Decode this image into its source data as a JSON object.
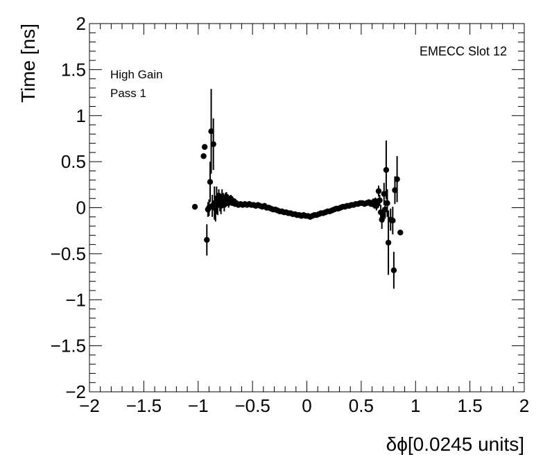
{
  "chart_data": {
    "type": "scatter",
    "title": "",
    "xlabel": "δϕ[0.0245 units]",
    "ylabel": "Time [ns]",
    "xlim": [
      -2,
      2
    ],
    "ylim": [
      -2,
      2
    ],
    "x_ticks": [
      -2,
      -1.5,
      -1,
      -0.5,
      0,
      0.5,
      1,
      1.5,
      2
    ],
    "y_ticks": [
      -2,
      -1.5,
      -1,
      -0.5,
      0,
      0.5,
      1,
      1.5,
      2
    ],
    "x_tick_labels": [
      "−2",
      "−1.5",
      "−1",
      "−0.5",
      "0",
      "0.5",
      "1",
      "1.5",
      "2"
    ],
    "y_tick_labels": [
      "−2",
      "−1.5",
      "−1",
      "−0.5",
      "0",
      "0.5",
      "1",
      "1.5",
      "2"
    ],
    "grid": false,
    "error_bars": true,
    "marker_color": "#000000",
    "annotations": {
      "top_left_line1": "High Gain",
      "top_left_line2": "Pass 1",
      "top_right": "EMECC Slot 12"
    },
    "series": [
      {
        "points": [
          {
            "x": -1.03,
            "y": 0.01,
            "err": 0.0
          },
          {
            "x": -0.95,
            "y": 0.56,
            "err": 0.0
          },
          {
            "x": -0.94,
            "y": 0.66,
            "err": 0.0
          },
          {
            "x": -0.92,
            "y": -0.35,
            "err": 0.17
          },
          {
            "x": -0.91,
            "y": -0.02,
            "err": 0.08
          },
          {
            "x": -0.9,
            "y": 0.0,
            "err": 0.09
          },
          {
            "x": -0.89,
            "y": 0.28,
            "err": 0.22
          },
          {
            "x": -0.88,
            "y": 0.83,
            "err": 0.46
          },
          {
            "x": -0.87,
            "y": 0.02,
            "err": 0.12
          },
          {
            "x": -0.86,
            "y": 0.69,
            "err": 0.28
          },
          {
            "x": -0.85,
            "y": 0.05,
            "err": 0.18
          },
          {
            "x": -0.84,
            "y": -0.01,
            "err": 0.14
          },
          {
            "x": -0.83,
            "y": 0.08,
            "err": 0.15
          },
          {
            "x": -0.82,
            "y": 0.04,
            "err": 0.12
          },
          {
            "x": -0.81,
            "y": 0.1,
            "err": 0.1
          },
          {
            "x": -0.8,
            "y": 0.06,
            "err": 0.1
          },
          {
            "x": -0.79,
            "y": 0.02,
            "err": 0.09
          },
          {
            "x": -0.78,
            "y": 0.12,
            "err": 0.08
          },
          {
            "x": -0.77,
            "y": 0.09,
            "err": 0.07
          },
          {
            "x": -0.76,
            "y": 0.03,
            "err": 0.07
          },
          {
            "x": -0.75,
            "y": 0.1,
            "err": 0.06
          },
          {
            "x": -0.74,
            "y": 0.12,
            "err": 0.05
          },
          {
            "x": -0.73,
            "y": 0.07,
            "err": 0.05
          },
          {
            "x": -0.72,
            "y": 0.05,
            "err": 0.05
          },
          {
            "x": -0.71,
            "y": 0.08,
            "err": 0.04
          },
          {
            "x": -0.7,
            "y": 0.1,
            "err": 0.04
          },
          {
            "x": -0.69,
            "y": 0.06,
            "err": 0.04
          },
          {
            "x": -0.68,
            "y": 0.05,
            "err": 0.03
          },
          {
            "x": -0.67,
            "y": 0.07,
            "err": 0.03
          },
          {
            "x": -0.66,
            "y": 0.04,
            "err": 0.03
          },
          {
            "x": -0.65,
            "y": 0.05,
            "err": 0.02
          },
          {
            "x": -0.63,
            "y": 0.03,
            "err": 0.02
          },
          {
            "x": -0.61,
            "y": 0.04,
            "err": 0.02
          },
          {
            "x": -0.59,
            "y": 0.03,
            "err": 0.02
          },
          {
            "x": -0.57,
            "y": 0.04,
            "err": 0.02
          },
          {
            "x": -0.55,
            "y": 0.03,
            "err": 0.02
          },
          {
            "x": -0.53,
            "y": 0.04,
            "err": 0.02
          },
          {
            "x": -0.51,
            "y": 0.03,
            "err": 0.02
          },
          {
            "x": -0.49,
            "y": 0.03,
            "err": 0.02
          },
          {
            "x": -0.47,
            "y": 0.02,
            "err": 0.02
          },
          {
            "x": -0.45,
            "y": 0.03,
            "err": 0.02
          },
          {
            "x": -0.43,
            "y": 0.02,
            "err": 0.02
          },
          {
            "x": -0.41,
            "y": 0.01,
            "err": 0.02
          },
          {
            "x": -0.39,
            "y": 0.02,
            "err": 0.02
          },
          {
            "x": -0.37,
            "y": 0.0,
            "err": 0.02
          },
          {
            "x": -0.35,
            "y": 0.0,
            "err": 0.02
          },
          {
            "x": -0.33,
            "y": -0.01,
            "err": 0.02
          },
          {
            "x": -0.31,
            "y": -0.02,
            "err": 0.02
          },
          {
            "x": -0.29,
            "y": -0.02,
            "err": 0.02
          },
          {
            "x": -0.27,
            "y": -0.03,
            "err": 0.02
          },
          {
            "x": -0.25,
            "y": -0.04,
            "err": 0.02
          },
          {
            "x": -0.23,
            "y": -0.04,
            "err": 0.02
          },
          {
            "x": -0.21,
            "y": -0.05,
            "err": 0.02
          },
          {
            "x": -0.19,
            "y": -0.05,
            "err": 0.02
          },
          {
            "x": -0.17,
            "y": -0.06,
            "err": 0.02
          },
          {
            "x": -0.15,
            "y": -0.06,
            "err": 0.02
          },
          {
            "x": -0.13,
            "y": -0.07,
            "err": 0.02
          },
          {
            "x": -0.11,
            "y": -0.07,
            "err": 0.02
          },
          {
            "x": -0.09,
            "y": -0.08,
            "err": 0.02
          },
          {
            "x": -0.07,
            "y": -0.08,
            "err": 0.02
          },
          {
            "x": -0.05,
            "y": -0.09,
            "err": 0.02
          },
          {
            "x": -0.03,
            "y": -0.08,
            "err": 0.02
          },
          {
            "x": -0.01,
            "y": -0.09,
            "err": 0.02
          },
          {
            "x": 0.01,
            "y": -0.09,
            "err": 0.02
          },
          {
            "x": 0.03,
            "y": -0.1,
            "err": 0.02
          },
          {
            "x": 0.05,
            "y": -0.09,
            "err": 0.02
          },
          {
            "x": 0.07,
            "y": -0.08,
            "err": 0.02
          },
          {
            "x": 0.09,
            "y": -0.08,
            "err": 0.02
          },
          {
            "x": 0.11,
            "y": -0.07,
            "err": 0.02
          },
          {
            "x": 0.13,
            "y": -0.06,
            "err": 0.02
          },
          {
            "x": 0.15,
            "y": -0.06,
            "err": 0.02
          },
          {
            "x": 0.17,
            "y": -0.05,
            "err": 0.02
          },
          {
            "x": 0.19,
            "y": -0.04,
            "err": 0.02
          },
          {
            "x": 0.21,
            "y": -0.04,
            "err": 0.02
          },
          {
            "x": 0.23,
            "y": -0.03,
            "err": 0.02
          },
          {
            "x": 0.25,
            "y": -0.02,
            "err": 0.02
          },
          {
            "x": 0.27,
            "y": -0.01,
            "err": 0.02
          },
          {
            "x": 0.29,
            "y": -0.01,
            "err": 0.02
          },
          {
            "x": 0.31,
            "y": 0.0,
            "err": 0.02
          },
          {
            "x": 0.33,
            "y": 0.01,
            "err": 0.02
          },
          {
            "x": 0.35,
            "y": 0.01,
            "err": 0.02
          },
          {
            "x": 0.37,
            "y": 0.02,
            "err": 0.02
          },
          {
            "x": 0.39,
            "y": 0.02,
            "err": 0.02
          },
          {
            "x": 0.41,
            "y": 0.03,
            "err": 0.02
          },
          {
            "x": 0.43,
            "y": 0.03,
            "err": 0.02
          },
          {
            "x": 0.45,
            "y": 0.04,
            "err": 0.02
          },
          {
            "x": 0.47,
            "y": 0.04,
            "err": 0.02
          },
          {
            "x": 0.49,
            "y": 0.05,
            "err": 0.02
          },
          {
            "x": 0.51,
            "y": 0.05,
            "err": 0.02
          },
          {
            "x": 0.53,
            "y": 0.04,
            "err": 0.02
          },
          {
            "x": 0.55,
            "y": 0.05,
            "err": 0.03
          },
          {
            "x": 0.57,
            "y": 0.06,
            "err": 0.03
          },
          {
            "x": 0.59,
            "y": 0.04,
            "err": 0.03
          },
          {
            "x": 0.61,
            "y": 0.06,
            "err": 0.04
          },
          {
            "x": 0.62,
            "y": 0.03,
            "err": 0.04
          },
          {
            "x": 0.63,
            "y": 0.07,
            "err": 0.04
          },
          {
            "x": 0.64,
            "y": 0.02,
            "err": 0.05
          },
          {
            "x": 0.65,
            "y": 0.05,
            "err": 0.05
          },
          {
            "x": 0.66,
            "y": 0.18,
            "err": 0.06
          },
          {
            "x": 0.67,
            "y": 0.08,
            "err": 0.06
          },
          {
            "x": 0.68,
            "y": -0.05,
            "err": 0.08
          },
          {
            "x": 0.69,
            "y": -0.13,
            "err": 0.1
          },
          {
            "x": 0.7,
            "y": -0.08,
            "err": 0.08
          },
          {
            "x": 0.71,
            "y": 0.15,
            "err": 0.12
          },
          {
            "x": 0.72,
            "y": -0.02,
            "err": 0.1
          },
          {
            "x": 0.73,
            "y": 0.41,
            "err": 0.32
          },
          {
            "x": 0.74,
            "y": 0.05,
            "err": 0.15
          },
          {
            "x": 0.75,
            "y": -0.38,
            "err": 0.35
          },
          {
            "x": 0.77,
            "y": -0.13,
            "err": 0.12
          },
          {
            "x": 0.79,
            "y": -0.14,
            "err": 0.15
          },
          {
            "x": 0.8,
            "y": -0.68,
            "err": 0.2
          },
          {
            "x": 0.81,
            "y": 0.19,
            "err": 0.15
          },
          {
            "x": 0.83,
            "y": 0.31,
            "err": 0.25
          },
          {
            "x": 0.86,
            "y": -0.27,
            "err": 0.0
          }
        ]
      }
    ]
  }
}
